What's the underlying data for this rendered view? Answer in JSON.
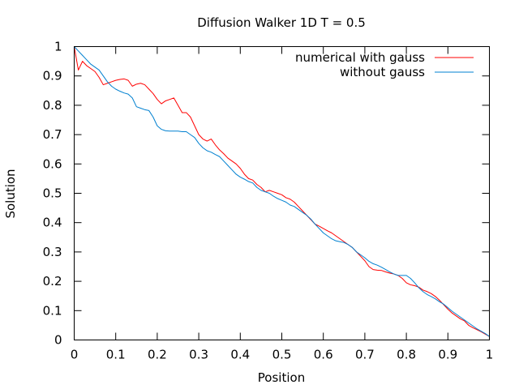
{
  "chart_data": {
    "type": "line",
    "title": "Diffusion Walker 1D T = 0.5",
    "xlabel": "Position",
    "ylabel": "Solution",
    "xlim": [
      0,
      1
    ],
    "ylim": [
      0,
      1
    ],
    "xticks": [
      "0",
      "0.1",
      "0.2",
      "0.3",
      "0.4",
      "0.5",
      "0.6",
      "0.7",
      "0.8",
      "0.9",
      "1"
    ],
    "yticks": [
      "0",
      "0.1",
      "0.2",
      "0.3",
      "0.4",
      "0.5",
      "0.6",
      "0.7",
      "0.8",
      "0.9",
      "1"
    ],
    "grid": false,
    "legend_position": "top-right",
    "series": [
      {
        "name": "numerical with gauss",
        "color": "#ff0000",
        "x": [
          0,
          0.01,
          0.02,
          0.03,
          0.04,
          0.05,
          0.06,
          0.07,
          0.08,
          0.09,
          0.1,
          0.11,
          0.12,
          0.13,
          0.14,
          0.15,
          0.16,
          0.17,
          0.18,
          0.19,
          0.2,
          0.21,
          0.22,
          0.23,
          0.24,
          0.25,
          0.26,
          0.27,
          0.28,
          0.29,
          0.3,
          0.31,
          0.32,
          0.33,
          0.34,
          0.35,
          0.36,
          0.37,
          0.38,
          0.39,
          0.4,
          0.41,
          0.42,
          0.43,
          0.44,
          0.45,
          0.46,
          0.47,
          0.48,
          0.49,
          0.5,
          0.51,
          0.52,
          0.53,
          0.54,
          0.55,
          0.56,
          0.57,
          0.58,
          0.59,
          0.6,
          0.61,
          0.62,
          0.63,
          0.64,
          0.65,
          0.66,
          0.67,
          0.68,
          0.69,
          0.7,
          0.71,
          0.72,
          0.73,
          0.74,
          0.75,
          0.76,
          0.77,
          0.78,
          0.79,
          0.8,
          0.81,
          0.82,
          0.83,
          0.84,
          0.85,
          0.86,
          0.87,
          0.88,
          0.89,
          0.9,
          0.91,
          0.92,
          0.93,
          0.94,
          0.95,
          0.96,
          0.97,
          0.98,
          0.99,
          1.0
        ],
        "y": [
          1.0,
          0.92,
          0.95,
          0.935,
          0.925,
          0.915,
          0.895,
          0.87,
          0.875,
          0.88,
          0.885,
          0.888,
          0.89,
          0.885,
          0.865,
          0.872,
          0.875,
          0.87,
          0.855,
          0.84,
          0.82,
          0.805,
          0.815,
          0.82,
          0.825,
          0.8,
          0.775,
          0.775,
          0.76,
          0.73,
          0.7,
          0.685,
          0.678,
          0.685,
          0.665,
          0.648,
          0.635,
          0.62,
          0.61,
          0.6,
          0.585,
          0.565,
          0.55,
          0.545,
          0.53,
          0.52,
          0.505,
          0.51,
          0.505,
          0.5,
          0.495,
          0.485,
          0.48,
          0.47,
          0.455,
          0.44,
          0.425,
          0.41,
          0.395,
          0.388,
          0.38,
          0.372,
          0.365,
          0.355,
          0.345,
          0.335,
          0.325,
          0.315,
          0.3,
          0.285,
          0.27,
          0.25,
          0.24,
          0.238,
          0.237,
          0.232,
          0.228,
          0.225,
          0.22,
          0.21,
          0.195,
          0.188,
          0.185,
          0.18,
          0.17,
          0.165,
          0.158,
          0.148,
          0.135,
          0.12,
          0.105,
          0.092,
          0.082,
          0.072,
          0.065,
          0.05,
          0.042,
          0.035,
          0.028,
          0.02,
          0.012
        ]
      },
      {
        "name": "without gauss",
        "color": "#0080d0",
        "x": [
          0,
          0.01,
          0.02,
          0.03,
          0.04,
          0.05,
          0.06,
          0.07,
          0.08,
          0.09,
          0.1,
          0.11,
          0.12,
          0.13,
          0.14,
          0.15,
          0.16,
          0.17,
          0.18,
          0.19,
          0.2,
          0.21,
          0.22,
          0.23,
          0.24,
          0.25,
          0.26,
          0.27,
          0.28,
          0.29,
          0.3,
          0.31,
          0.32,
          0.33,
          0.34,
          0.35,
          0.36,
          0.37,
          0.38,
          0.39,
          0.4,
          0.41,
          0.42,
          0.43,
          0.44,
          0.45,
          0.46,
          0.47,
          0.48,
          0.49,
          0.5,
          0.51,
          0.52,
          0.53,
          0.54,
          0.55,
          0.56,
          0.57,
          0.58,
          0.59,
          0.6,
          0.61,
          0.62,
          0.63,
          0.64,
          0.65,
          0.66,
          0.67,
          0.68,
          0.69,
          0.7,
          0.71,
          0.72,
          0.73,
          0.74,
          0.75,
          0.76,
          0.77,
          0.78,
          0.79,
          0.8,
          0.81,
          0.82,
          0.83,
          0.84,
          0.85,
          0.86,
          0.87,
          0.88,
          0.89,
          0.9,
          0.91,
          0.92,
          0.93,
          0.94,
          0.95,
          0.96,
          0.97,
          0.98,
          0.99,
          1.0
        ],
        "y": [
          1.0,
          0.985,
          0.97,
          0.955,
          0.94,
          0.93,
          0.92,
          0.9,
          0.88,
          0.865,
          0.855,
          0.848,
          0.842,
          0.838,
          0.825,
          0.795,
          0.79,
          0.785,
          0.782,
          0.76,
          0.73,
          0.718,
          0.713,
          0.712,
          0.712,
          0.712,
          0.71,
          0.71,
          0.7,
          0.69,
          0.67,
          0.655,
          0.645,
          0.64,
          0.632,
          0.625,
          0.61,
          0.595,
          0.58,
          0.565,
          0.555,
          0.548,
          0.54,
          0.535,
          0.52,
          0.51,
          0.505,
          0.5,
          0.49,
          0.482,
          0.476,
          0.47,
          0.46,
          0.455,
          0.445,
          0.435,
          0.425,
          0.412,
          0.395,
          0.38,
          0.365,
          0.355,
          0.345,
          0.338,
          0.335,
          0.332,
          0.325,
          0.315,
          0.3,
          0.29,
          0.28,
          0.268,
          0.26,
          0.255,
          0.248,
          0.24,
          0.232,
          0.225,
          0.22,
          0.22,
          0.22,
          0.21,
          0.195,
          0.178,
          0.165,
          0.155,
          0.148,
          0.14,
          0.13,
          0.122,
          0.11,
          0.098,
          0.088,
          0.078,
          0.068,
          0.058,
          0.048,
          0.038,
          0.03,
          0.022,
          0.012
        ]
      }
    ]
  }
}
